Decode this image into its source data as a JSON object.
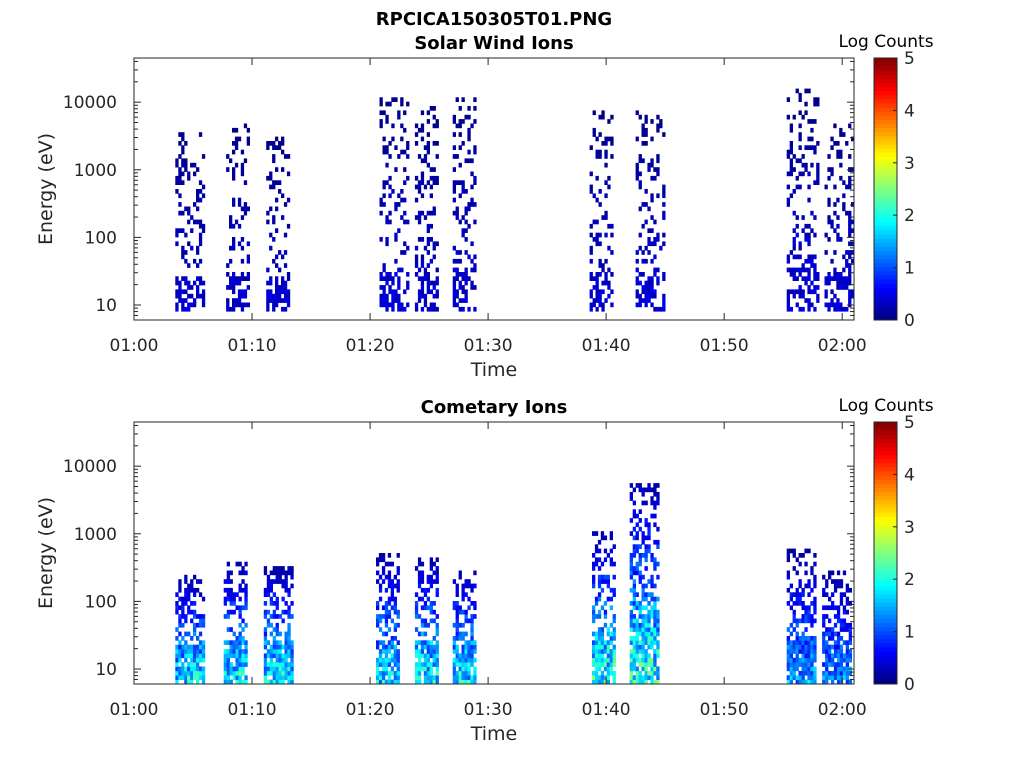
{
  "figure_title": "RPCICA150305T01.PNG",
  "colorbar": {
    "label": "Log Counts",
    "ticks": [
      "0",
      "1",
      "2",
      "3",
      "4",
      "5"
    ],
    "range": [
      0,
      5
    ],
    "colormap": "jet"
  },
  "chart_data": [
    {
      "type": "heatmap",
      "title": "Solar Wind Ions",
      "xlabel": "Time",
      "ylabel": "Energy (eV)",
      "x_tick_labels": [
        "01:00",
        "01:10",
        "01:20",
        "01:30",
        "01:40",
        "01:50",
        "02:00"
      ],
      "y_tick_labels": [
        "10",
        "100",
        "1000",
        "10000"
      ],
      "y_scale": "log",
      "ylim": [
        6,
        45000
      ],
      "x_range_minutes": [
        0,
        61
      ],
      "z_label": "Log Counts",
      "z_range": [
        0,
        5
      ],
      "bursts": [
        {
          "start": 3.5,
          "end": 6.0,
          "emin": 8,
          "emax": 3500,
          "peak": 0.4
        },
        {
          "start": 7.8,
          "end": 9.8,
          "emin": 8,
          "emax": 4500,
          "peak": 0.4
        },
        {
          "start": 11.2,
          "end": 13.2,
          "emin": 8,
          "emax": 3000,
          "peak": 0.4
        },
        {
          "start": 20.8,
          "end": 23.2,
          "emin": 8,
          "emax": 12000,
          "peak": 0.45
        },
        {
          "start": 23.8,
          "end": 25.8,
          "emin": 8,
          "emax": 9000,
          "peak": 0.4
        },
        {
          "start": 27.0,
          "end": 29.0,
          "emin": 8,
          "emax": 12000,
          "peak": 0.4
        },
        {
          "start": 38.6,
          "end": 40.5,
          "emin": 8,
          "emax": 8000,
          "peak": 0.4
        },
        {
          "start": 42.5,
          "end": 44.8,
          "emin": 8,
          "emax": 8000,
          "peak": 0.45
        },
        {
          "start": 55.3,
          "end": 58.0,
          "emin": 8,
          "emax": 15000,
          "peak": 0.45
        },
        {
          "start": 58.5,
          "end": 60.8,
          "emin": 8,
          "emax": 5000,
          "peak": 0.4
        }
      ]
    },
    {
      "type": "heatmap",
      "title": "Cometary Ions",
      "xlabel": "Time",
      "ylabel": "Energy (eV)",
      "x_tick_labels": [
        "01:00",
        "01:10",
        "01:20",
        "01:30",
        "01:40",
        "01:50",
        "02:00"
      ],
      "y_tick_labels": [
        "10",
        "100",
        "1000",
        "10000"
      ],
      "y_scale": "log",
      "ylim": [
        6,
        45000
      ],
      "x_range_minutes": [
        0,
        61
      ],
      "z_label": "Log Counts",
      "z_range": [
        0,
        5
      ],
      "bursts": [
        {
          "start": 3.5,
          "end": 5.8,
          "emin": 6,
          "emax": 250,
          "peak": 1.8
        },
        {
          "start": 7.6,
          "end": 9.5,
          "emin": 6,
          "emax": 400,
          "peak": 1.8
        },
        {
          "start": 11.0,
          "end": 13.3,
          "emin": 6,
          "emax": 350,
          "peak": 1.8
        },
        {
          "start": 20.5,
          "end": 22.5,
          "emin": 6,
          "emax": 500,
          "peak": 1.7
        },
        {
          "start": 23.8,
          "end": 25.8,
          "emin": 6,
          "emax": 450,
          "peak": 1.9
        },
        {
          "start": 27.0,
          "end": 29.0,
          "emin": 6,
          "emax": 300,
          "peak": 1.8
        },
        {
          "start": 38.8,
          "end": 40.8,
          "emin": 6,
          "emax": 1100,
          "peak": 2.0
        },
        {
          "start": 42.0,
          "end": 44.5,
          "emin": 6,
          "emax": 6000,
          "peak": 2.0
        },
        {
          "start": 55.3,
          "end": 57.8,
          "emin": 6,
          "emax": 600,
          "peak": 1.4
        },
        {
          "start": 58.3,
          "end": 60.8,
          "emin": 6,
          "emax": 300,
          "peak": 1.3
        }
      ]
    }
  ]
}
